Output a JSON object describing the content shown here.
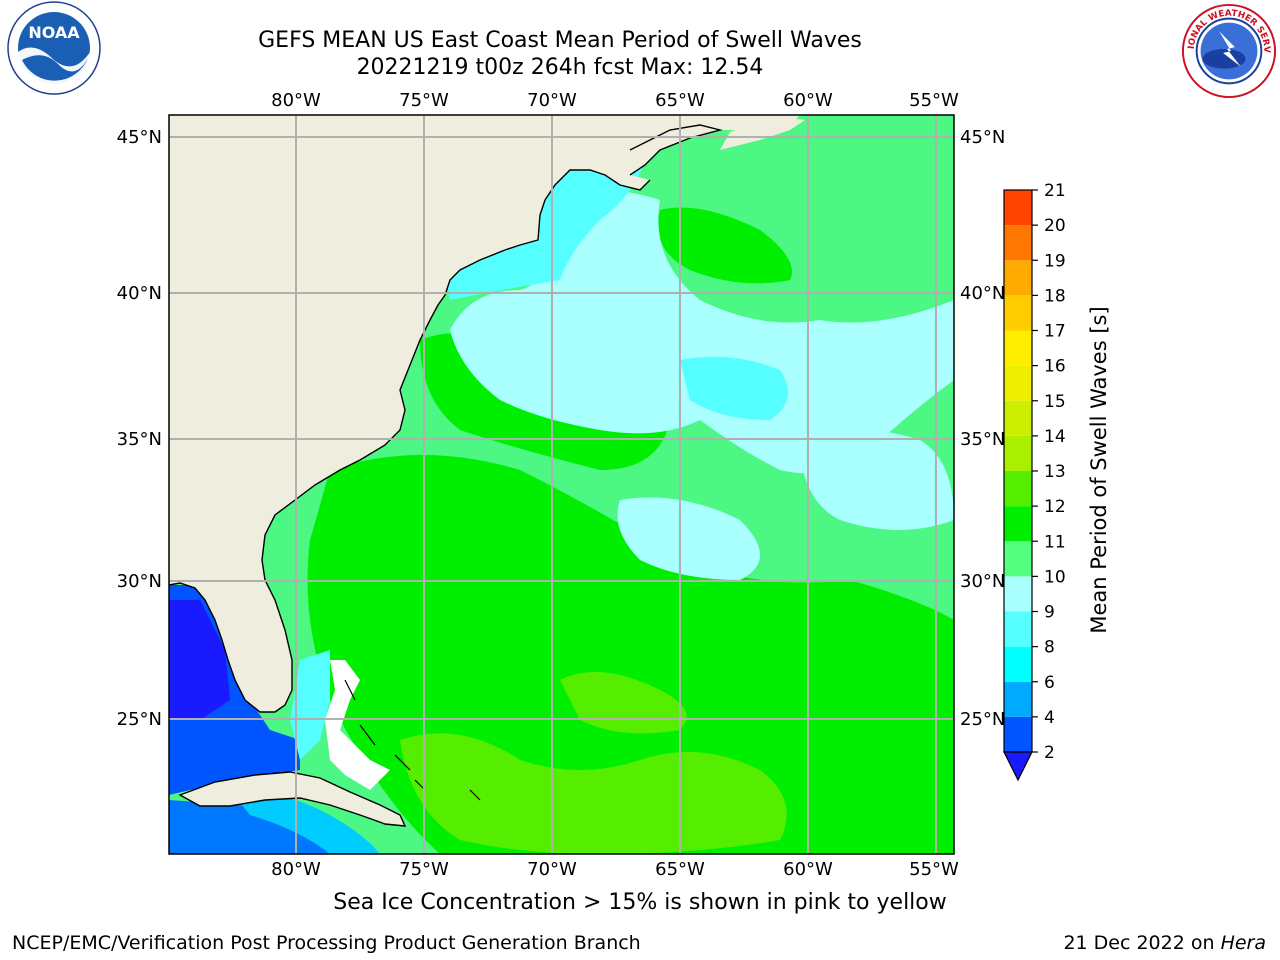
{
  "header": {
    "title_line1": "GEFS MEAN US East Coast Mean Period of Swell Waves",
    "title_line2": "20221219 t00z 264h fcst   Max: 12.54"
  },
  "logos": {
    "left": {
      "text": "NOAA",
      "ring_text": "NATIONAL OCEANIC AND ATMOSPHERIC ADMINISTRATION · U.S. DEPARTMENT OF COMMERCE",
      "icon": "noaa-logo"
    },
    "right": {
      "ring_text": "NATIONAL WEATHER SERVICE",
      "icon": "nws-logo"
    }
  },
  "map": {
    "lon_labels": [
      "80°W",
      "75°W",
      "70°W",
      "65°W",
      "60°W",
      "55°W"
    ],
    "lat_labels": [
      "45°N",
      "40°N",
      "35°N",
      "30°N",
      "25°N"
    ],
    "colors": {
      "land": "#efedde",
      "ocean_base": "#4cf783",
      "grid": "#b0b0b0"
    }
  },
  "colorbar": {
    "label": "Mean Period of Swell Waves [s]",
    "ticks": [
      "2",
      "4",
      "6",
      "8",
      "9",
      "10",
      "11",
      "12",
      "13",
      "14",
      "15",
      "16",
      "17",
      "18",
      "19",
      "20",
      "21"
    ],
    "colors": [
      "#0055ff",
      "#00aaff",
      "#00ffff",
      "#55ffff",
      "#aaffff",
      "#55ff80",
      "#00ee00",
      "#55ee00",
      "#aaee00",
      "#ccee00",
      "#eeee00",
      "#ffee00",
      "#ffcc00",
      "#ffaa00",
      "#ff7700",
      "#ff4400",
      "#ff2200",
      "#ff0000"
    ],
    "extend_color": "#1a1aff"
  },
  "footer": {
    "note": "Sea Ice Concentration > 15% is shown in pink to yellow",
    "left": "NCEP/EMC/Verification Post Processing Product Generation Branch",
    "right_date": "21 Dec 2022 on ",
    "right_host": "Hera"
  }
}
